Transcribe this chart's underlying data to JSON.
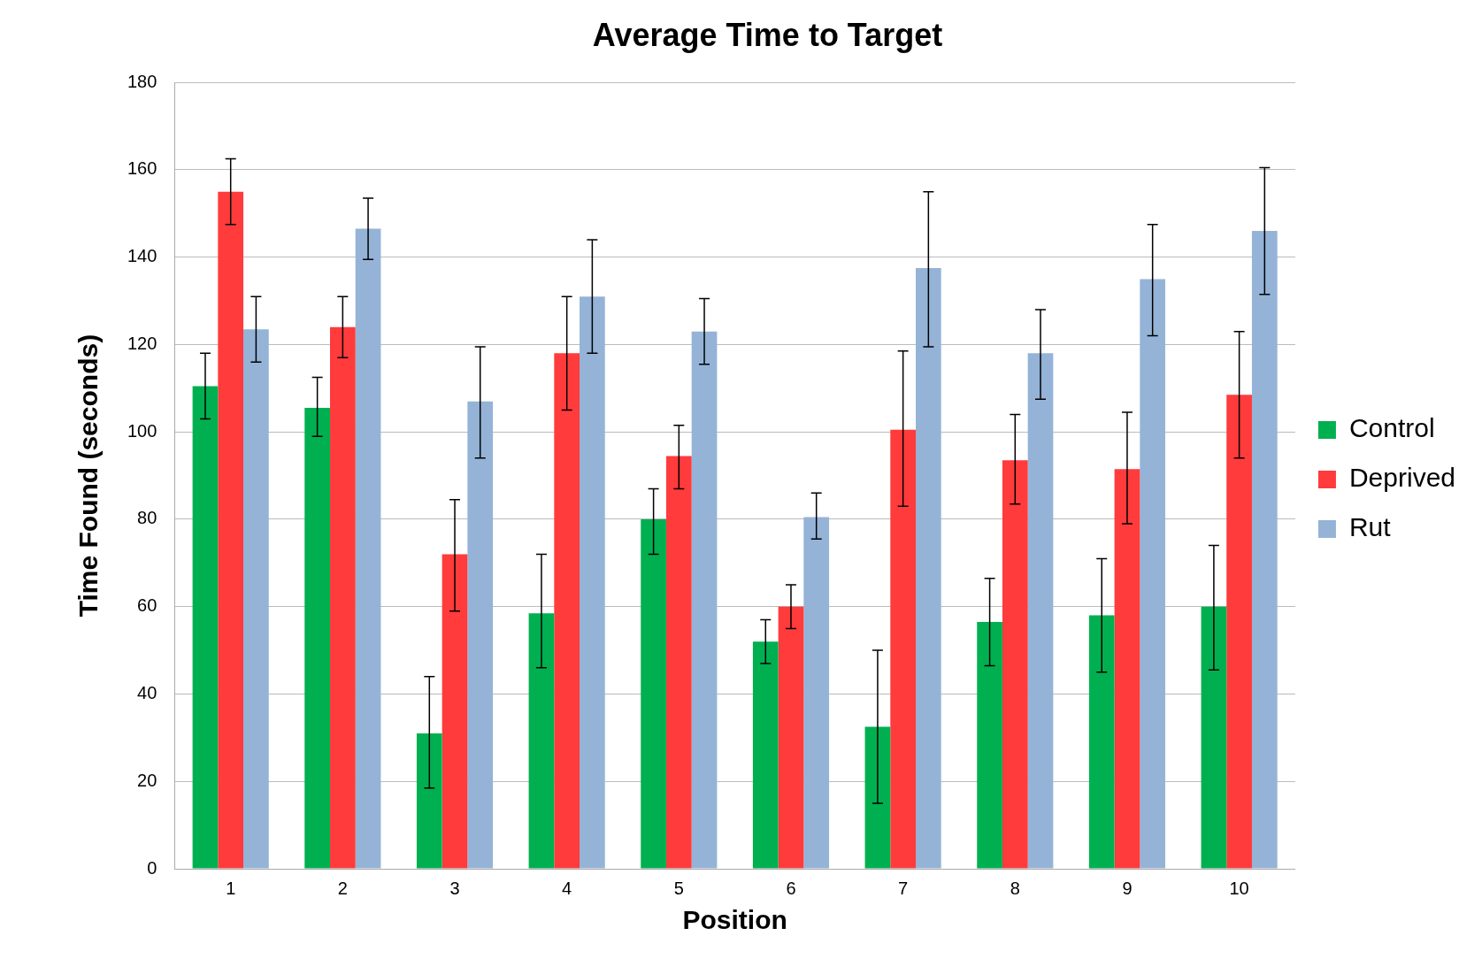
{
  "chart_data": {
    "type": "bar",
    "title": "Average Time to Target",
    "xlabel": "Position",
    "ylabel": "Time Found (seconds)",
    "categories": [
      "1",
      "2",
      "3",
      "4",
      "5",
      "6",
      "7",
      "8",
      "9",
      "10"
    ],
    "series": [
      {
        "name": "Control",
        "color": "#00b050",
        "values": [
          110.5,
          105.5,
          31,
          58.5,
          80,
          52,
          32.5,
          56.5,
          58,
          60
        ],
        "errors": [
          [
            103,
            118
          ],
          [
            99,
            112.5
          ],
          [
            18.5,
            44
          ],
          [
            46,
            72
          ],
          [
            72,
            87
          ],
          [
            47,
            57
          ],
          [
            15,
            50
          ],
          [
            46.5,
            66.5
          ],
          [
            45,
            71
          ],
          [
            45.5,
            74
          ]
        ]
      },
      {
        "name": "Deprived",
        "color": "#ff3b3b",
        "values": [
          155,
          124,
          72,
          118,
          94.5,
          60,
          100.5,
          93.5,
          91.5,
          108.5
        ],
        "errors": [
          [
            147.5,
            162.5
          ],
          [
            117,
            131
          ],
          [
            59,
            84.5
          ],
          [
            105,
            131
          ],
          [
            87,
            101.5
          ],
          [
            55,
            65
          ],
          [
            83,
            118.5
          ],
          [
            83.5,
            104
          ],
          [
            79,
            104.5
          ],
          [
            94,
            123
          ]
        ]
      },
      {
        "name": "Rut",
        "color": "#95b3d7",
        "values": [
          123.5,
          146.5,
          107,
          131,
          123,
          80.5,
          137.5,
          118,
          135,
          146
        ],
        "errors": [
          [
            116,
            131
          ],
          [
            139.5,
            153.5
          ],
          [
            94,
            119.5
          ],
          [
            118,
            144
          ],
          [
            115.5,
            130.5
          ],
          [
            75.5,
            86
          ],
          [
            119.5,
            155
          ],
          [
            107.5,
            128
          ],
          [
            122,
            147.5
          ],
          [
            131.5,
            160.5
          ]
        ]
      }
    ],
    "ylim": [
      0,
      180
    ],
    "yticks": [
      0,
      20,
      40,
      60,
      80,
      100,
      120,
      140,
      160,
      180
    ],
    "grid": "y",
    "legend": "right"
  }
}
